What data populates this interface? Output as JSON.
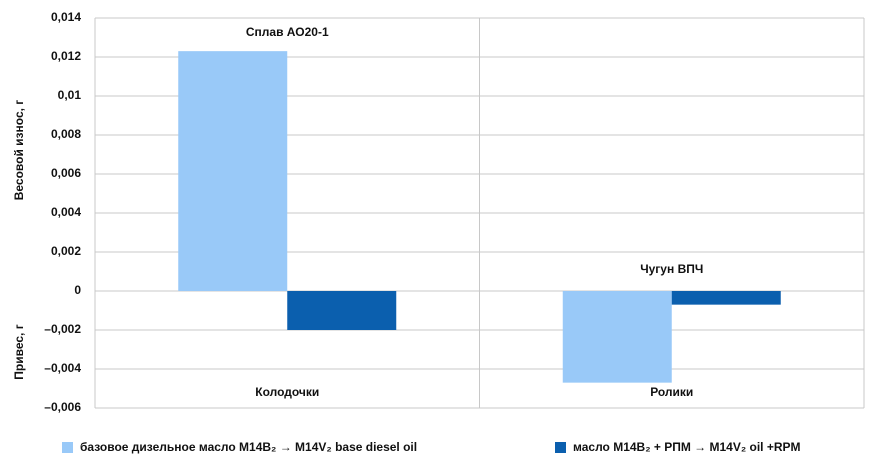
{
  "chart_data": {
    "type": "bar",
    "y_label_upper": "Весовой износ, г",
    "y_label_lower": "Привес, г",
    "annotations": [
      "Сплав АО20-1",
      "Чугун ВПЧ"
    ],
    "categories": [
      "Колодочки",
      "Ролики"
    ],
    "series": [
      {
        "name": "базовое дизельное масло М14В₂ → М14V₂ base diesel oil",
        "color": "#99c9f8",
        "values": [
          0.0123,
          -0.0047
        ]
      },
      {
        "name": "масло М14В₂ + РПМ → М14V₂ oil +RPM",
        "color": "#0b5fae",
        "values": [
          -0.002,
          -0.0007
        ]
      }
    ],
    "ylim": [
      -0.006,
      0.014
    ],
    "yticks": [
      {
        "value": -0.006,
        "label": "–0,006"
      },
      {
        "value": -0.004,
        "label": "–0,004"
      },
      {
        "value": -0.002,
        "label": "–0,002"
      },
      0,
      {
        "value": 0.002,
        "label": "0,002"
      },
      {
        "value": 0.004,
        "label": "0,004"
      },
      {
        "value": 0.006,
        "label": "0,006"
      },
      {
        "value": 0.008,
        "label": "0,008"
      },
      {
        "value": 0.01,
        "label": "0,01"
      },
      {
        "value": 0.012,
        "label": "0,012"
      },
      {
        "value": 0.014,
        "label": "0,014"
      }
    ],
    "grid": true
  }
}
